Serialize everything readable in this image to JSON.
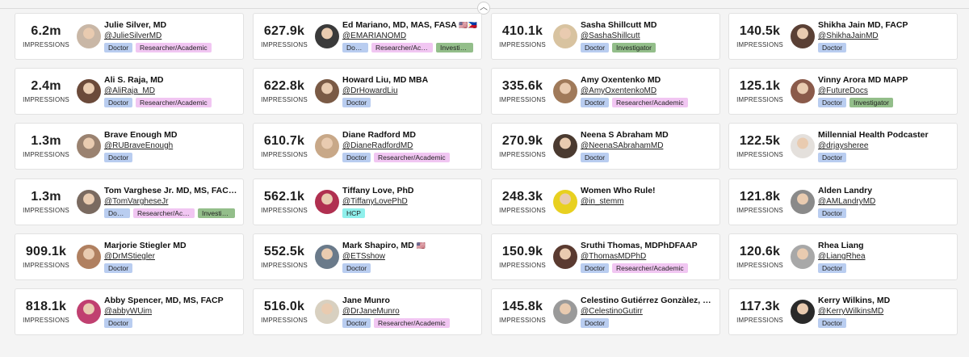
{
  "ui": {
    "impressions_label": "IMPRESSIONS",
    "collapse_icon": "chevron-up-icon"
  },
  "colors": {
    "doctor": "#b9cdf0",
    "researcher": "#f1c6f2",
    "investigator": "#93be8a",
    "hcp": "#8ff0ec"
  },
  "cards": [
    {
      "impressions": "6.2m",
      "name": "Julie Silver, MD",
      "handle": "@JulieSilverMD",
      "tags": [
        "Doctor",
        "Researcher/Academic"
      ],
      "flag": ""
    },
    {
      "impressions": "627.9k",
      "name": "Ed Mariano, MD, MAS, FASA",
      "handle": "@EMARIANOMD",
      "tags": [
        "Doctor",
        "Researcher/Academic",
        "Investigator"
      ],
      "flag": "🇺🇸🇵🇭"
    },
    {
      "impressions": "410.1k",
      "name": "Sasha Shillcutt MD",
      "handle": "@SashaShillcutt",
      "tags": [
        "Doctor",
        "Investigator"
      ],
      "flag": ""
    },
    {
      "impressions": "140.5k",
      "name": "Shikha Jain MD, FACP",
      "handle": "@ShikhaJainMD",
      "tags": [
        "Doctor"
      ],
      "flag": ""
    },
    {
      "impressions": "2.4m",
      "name": "Ali S. Raja, MD",
      "handle": "@AliRaja_MD",
      "tags": [
        "Doctor",
        "Researcher/Academic"
      ],
      "flag": ""
    },
    {
      "impressions": "622.8k",
      "name": "Howard Liu, MD MBA",
      "handle": "@DrHowardLiu",
      "tags": [
        "Doctor"
      ],
      "flag": ""
    },
    {
      "impressions": "335.6k",
      "name": "Amy Oxentenko MD",
      "handle": "@AmyOxentenkoMD",
      "tags": [
        "Doctor",
        "Researcher/Academic"
      ],
      "flag": ""
    },
    {
      "impressions": "125.1k",
      "name": "Vinny Arora MD MAPP",
      "handle": "@FutureDocs",
      "tags": [
        "Doctor",
        "Investigator"
      ],
      "flag": ""
    },
    {
      "impressions": "1.3m",
      "name": "Brave Enough MD",
      "handle": "@RUBraveEnough",
      "tags": [
        "Doctor"
      ],
      "flag": ""
    },
    {
      "impressions": "610.7k",
      "name": "Diane Radford MD",
      "handle": "@DianeRadfordMD",
      "tags": [
        "Doctor",
        "Researcher/Academic"
      ],
      "flag": ""
    },
    {
      "impressions": "270.9k",
      "name": "Neena S Abraham MD",
      "handle": "@NeenaSAbrahamMD",
      "tags": [
        "Doctor"
      ],
      "flag": ""
    },
    {
      "impressions": "122.5k",
      "name": "Millennial Health Podcaster",
      "handle": "@drjaysheree",
      "tags": [
        "Doctor"
      ],
      "flag": ""
    },
    {
      "impressions": "1.3m",
      "name": "Tom Varghese Jr. MD, MS, FACS",
      "handle": "@TomVargheseJr",
      "tags": [
        "Doctor",
        "Researcher/Academic",
        "Investigator"
      ],
      "flag": "🇺🇸"
    },
    {
      "impressions": "562.1k",
      "name": "Tiffany Love, PhD",
      "handle": "@TiffanyLovePhD",
      "tags": [
        "HCP"
      ],
      "flag": ""
    },
    {
      "impressions": "248.3k",
      "name": "Women Who Rule!",
      "handle": "@in_stemm",
      "tags": [],
      "flag": ""
    },
    {
      "impressions": "121.8k",
      "name": "Alden Landry",
      "handle": "@AMLandryMD",
      "tags": [
        "Doctor"
      ],
      "flag": ""
    },
    {
      "impressions": "909.1k",
      "name": "Marjorie Stiegler MD",
      "handle": "@DrMStiegler",
      "tags": [
        "Doctor"
      ],
      "flag": ""
    },
    {
      "impressions": "552.5k",
      "name": "Mark Shapiro, MD",
      "handle": "@ETSshow",
      "tags": [
        "Doctor"
      ],
      "flag": "🇺🇸"
    },
    {
      "impressions": "150.9k",
      "name": "Sruthi Thomas, MDPhDFAAP",
      "handle": "@ThomasMDPhD",
      "tags": [
        "Doctor",
        "Researcher/Academic"
      ],
      "flag": ""
    },
    {
      "impressions": "120.6k",
      "name": "Rhea Liang",
      "handle": "@LiangRhea",
      "tags": [
        "Doctor"
      ],
      "flag": ""
    },
    {
      "impressions": "818.1k",
      "name": "Abby Spencer, MD, MS, FACP",
      "handle": "@abbyWUim",
      "tags": [
        "Doctor"
      ],
      "flag": ""
    },
    {
      "impressions": "516.0k",
      "name": "Jane Munro",
      "handle": "@DrJaneMunro",
      "tags": [
        "Doctor",
        "Researcher/Academic"
      ],
      "flag": ""
    },
    {
      "impressions": "145.8k",
      "name": "Celestino Gutiérrez Gonzàlez, MD …",
      "handle": "@CelestinoGutirr",
      "tags": [
        "Doctor"
      ],
      "flag": ""
    },
    {
      "impressions": "117.3k",
      "name": "Kerry Wilkins, MD",
      "handle": "@KerryWilkinsMD",
      "tags": [
        "Doctor"
      ],
      "flag": ""
    }
  ]
}
